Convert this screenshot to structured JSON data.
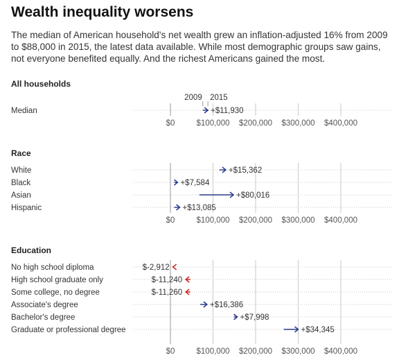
{
  "title": "Wealth inequality worsens",
  "subtitle": "The median of American household's net wealth grew an inflation-adjusted 16% from 2009 to $88,000 in 2015, the latest data available. While most demographic groups saw gains, not everyone benefited equally. And the richest Americans gained the most.",
  "legend": {
    "start_label": "2009",
    "end_label": "2015"
  },
  "colors": {
    "gain": "#2b3a8c",
    "loss": "#c62828",
    "grid": "#c8c8c8",
    "text": "#333333",
    "axis_text": "#555555"
  },
  "chart_data": {
    "type": "arrow-dumbbell",
    "x_ticks": [
      "$0",
      "$100,000",
      "$200,000",
      "$300,000",
      "$400,000"
    ],
    "xlim": [
      0,
      400000
    ],
    "groups": [
      {
        "name": "All households",
        "rows": [
          {
            "label": "Median",
            "start": 76000,
            "end": 88000,
            "change": "+$11,930",
            "direction": "gain"
          }
        ]
      },
      {
        "name": "Race",
        "rows": [
          {
            "label": "White",
            "start": 115000,
            "end": 130000,
            "change": "+$15,362",
            "direction": "gain"
          },
          {
            "label": "Black",
            "start": 9000,
            "end": 17000,
            "change": "+$7,584",
            "direction": "gain"
          },
          {
            "label": "Asian",
            "start": 68000,
            "end": 148000,
            "change": "+$80,016",
            "direction": "gain"
          },
          {
            "label": "Hispanic",
            "start": 9000,
            "end": 22000,
            "change": "+$13,085",
            "direction": "gain"
          }
        ]
      },
      {
        "name": "Education",
        "rows": [
          {
            "label": "No high school diploma",
            "start": 9000,
            "end": 6000,
            "change": "$-2,912",
            "direction": "loss"
          },
          {
            "label": "High school graduate only",
            "start": 47000,
            "end": 36000,
            "change": "$-11,240",
            "direction": "loss"
          },
          {
            "label": "Some college, no degree",
            "start": 47000,
            "end": 36000,
            "change": "$-11,260",
            "direction": "loss"
          },
          {
            "label": "Associate's degree",
            "start": 70000,
            "end": 86000,
            "change": "+$16,386",
            "direction": "gain"
          },
          {
            "label": "Bachelor's degree",
            "start": 149000,
            "end": 157000,
            "change": "+$7,998",
            "direction": "gain"
          },
          {
            "label": "Graduate or professional degree",
            "start": 266000,
            "end": 300000,
            "change": "+$34,345",
            "direction": "gain"
          }
        ]
      }
    ]
  }
}
